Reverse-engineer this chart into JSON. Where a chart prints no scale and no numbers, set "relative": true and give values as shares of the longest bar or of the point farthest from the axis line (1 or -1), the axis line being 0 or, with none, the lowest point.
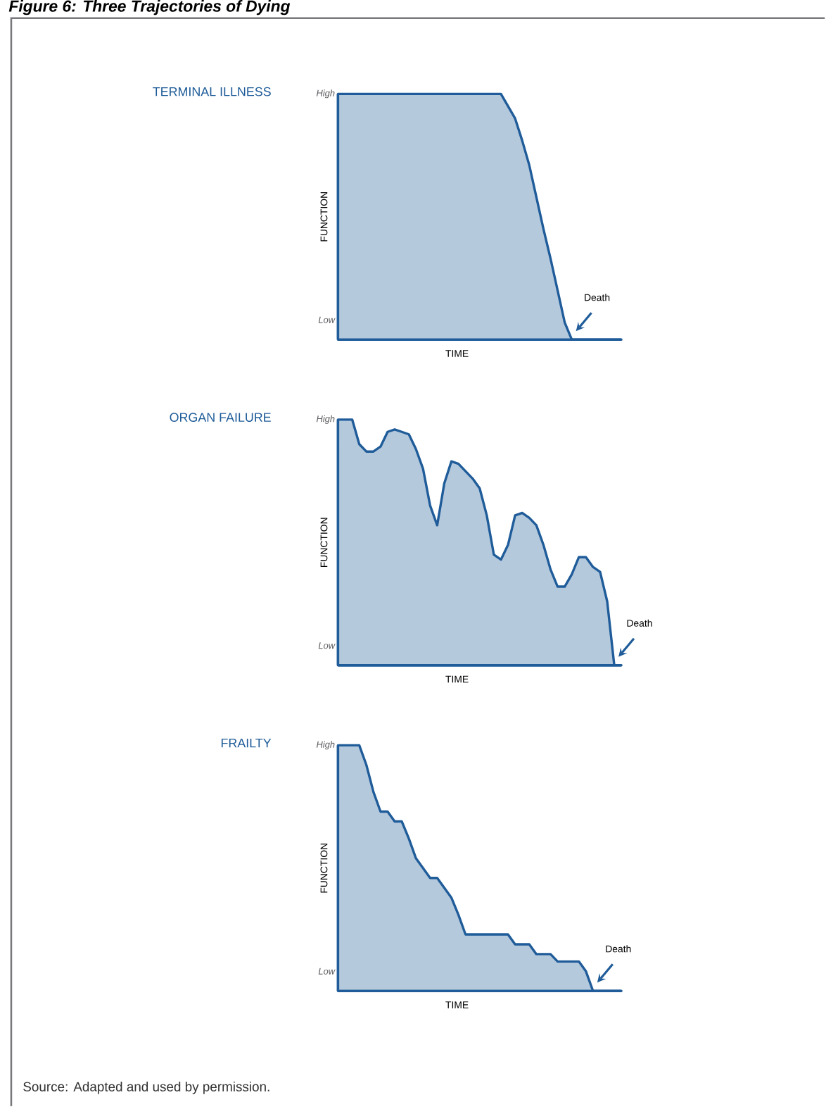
{
  "chart_data": [
    {
      "type": "area",
      "title": "TERMINAL ILLNESS",
      "xlabel": "TIME",
      "ylabel": "FUNCTION",
      "relative": true,
      "annotations": [
        "High",
        "Low",
        "Death"
      ],
      "categories": [
        null,
        null,
        null,
        null,
        null,
        null,
        null,
        null,
        null,
        null,
        null,
        null,
        null,
        null,
        null,
        null,
        null,
        null,
        null,
        null,
        null,
        null,
        null,
        null,
        null,
        null,
        null,
        null,
        null,
        null,
        null,
        null,
        null,
        null,
        null,
        null,
        null,
        null,
        null,
        null,
        null
      ],
      "series": [
        {
          "color": "#1f5c99",
          "values": [
            1,
            1,
            1,
            1,
            1,
            1,
            1,
            1,
            1,
            1,
            1,
            1,
            1,
            1,
            1,
            1,
            1,
            1,
            1,
            1,
            1,
            1,
            1,
            1,
            0.95,
            0.9,
            0.81,
            0.71,
            0.58,
            0.45,
            0.33,
            0.2,
            0.07,
            0,
            0,
            0,
            0,
            0,
            0,
            0,
            0
          ]
        }
      ]
    },
    {
      "type": "area",
      "title": "ORGAN FAILURE",
      "xlabel": "TIME",
      "ylabel": "FUNCTION",
      "relative": true,
      "annotations": [
        "High",
        "Low",
        "Death"
      ],
      "categories": [
        null,
        null,
        null,
        null,
        null,
        null,
        null,
        null,
        null,
        null,
        null,
        null,
        null,
        null,
        null,
        null,
        null,
        null,
        null,
        null,
        null,
        null,
        null,
        null,
        null,
        null,
        null,
        null,
        null,
        null,
        null,
        null,
        null,
        null,
        null,
        null,
        null,
        null,
        null,
        null,
        null
      ],
      "series": [
        {
          "color": "#1f5c99",
          "values": [
            1,
            1,
            1,
            0.9,
            0.87,
            0.87,
            0.89,
            0.95,
            0.96,
            0.95,
            0.94,
            0.88,
            0.8,
            0.65,
            0.57,
            0.74,
            0.83,
            0.82,
            0.79,
            0.76,
            0.72,
            0.61,
            0.45,
            0.43,
            0.49,
            0.61,
            0.62,
            0.6,
            0.57,
            0.49,
            0.39,
            0.32,
            0.32,
            0.37,
            0.44,
            0.44,
            0.4,
            0.38,
            0.26,
            0,
            0
          ]
        }
      ]
    },
    {
      "type": "area",
      "title": "FRAILTY",
      "xlabel": "TIME",
      "ylabel": "FUNCTION",
      "relative": true,
      "annotations": [
        "High",
        "Low",
        "Death"
      ],
      "categories": [
        null,
        null,
        null,
        null,
        null,
        null,
        null,
        null,
        null,
        null,
        null,
        null,
        null,
        null,
        null,
        null,
        null,
        null,
        null,
        null,
        null,
        null,
        null,
        null,
        null,
        null,
        null,
        null,
        null,
        null,
        null,
        null,
        null,
        null,
        null,
        null,
        null,
        null,
        null,
        null,
        null
      ],
      "series": [
        {
          "color": "#1f5c99",
          "values": [
            1,
            1,
            1,
            1,
            0.92,
            0.81,
            0.73,
            0.73,
            0.69,
            0.69,
            0.62,
            0.54,
            0.5,
            0.46,
            0.46,
            0.42,
            0.38,
            0.31,
            0.23,
            0.23,
            0.23,
            0.23,
            0.23,
            0.23,
            0.23,
            0.19,
            0.19,
            0.19,
            0.15,
            0.15,
            0.15,
            0.12,
            0.12,
            0.12,
            0.12,
            0.08,
            0,
            0,
            0,
            0,
            0
          ]
        }
      ]
    },
    {
      "type": "other",
      "title": "Figure 6: Three Trajectories of Dying",
      "annotations": [
        "Source: Adapted and used by permission."
      ]
    }
  ]
}
